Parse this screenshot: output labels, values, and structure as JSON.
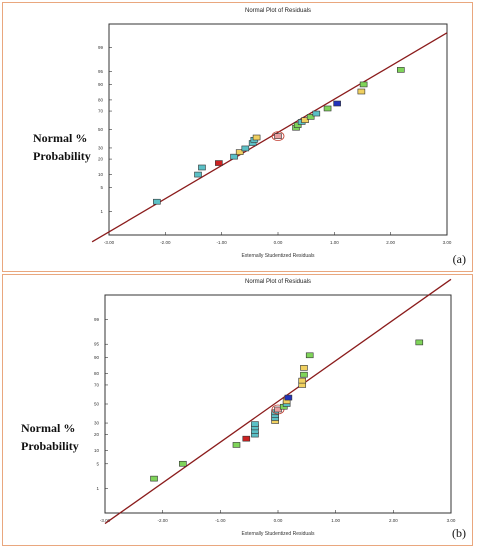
{
  "panels": [
    {
      "panel_label": "(a)",
      "title": "Normal Plot of Residuals",
      "xlabel": "Externally Studentized Residuals",
      "ylabel_line1": "Normal %",
      "ylabel_line2": "Probability"
    },
    {
      "panel_label": "(b)",
      "title": "Normal Plot of Residuals",
      "xlabel": "Externally Studentized Residuals",
      "ylabel_line1": "Normal %",
      "ylabel_line2": "Probability"
    }
  ],
  "colors": {
    "line": "#8b1c1c",
    "frame": "#333333",
    "panel_border": "#e9a77e",
    "highlight_ring": "#c0392b"
  },
  "chart_data": [
    {
      "type": "scatter",
      "title": "Normal Plot of Residuals",
      "xlabel": "Externally Studentized Residuals",
      "ylabel": "Normal % Probability",
      "xlim": [
        -3.0,
        3.0
      ],
      "x_ticks": [
        "-3.00",
        "-2.00",
        "-1.00",
        "0.00",
        "1.00",
        "2.00",
        "3.00"
      ],
      "y_ticks": [
        "1",
        "5",
        "10",
        "20",
        "30",
        "50",
        "70",
        "80",
        "90",
        "95",
        "99"
      ],
      "fit_line": {
        "x": [
          -3.3,
          3.0
        ],
        "y": [
          0.07,
          99.7
        ]
      },
      "points": [
        {
          "x": -2.15,
          "y": 2.0,
          "color": "#5bc0c6"
        },
        {
          "x": -1.42,
          "y": 10.0,
          "color": "#5bc0c6"
        },
        {
          "x": -1.35,
          "y": 14.0,
          "color": "#5bc0c6"
        },
        {
          "x": -1.05,
          "y": 17.0,
          "color": "#cc2222"
        },
        {
          "x": -0.78,
          "y": 22.0,
          "color": "#5bc0c6"
        },
        {
          "x": -0.68,
          "y": 26.0,
          "color": "#f0d060"
        },
        {
          "x": -0.58,
          "y": 29.5,
          "color": "#5bc0c6"
        },
        {
          "x": -0.45,
          "y": 35.0,
          "color": "#5bc0c6"
        },
        {
          "x": -0.42,
          "y": 38.5,
          "color": "#5bc0c6"
        },
        {
          "x": -0.38,
          "y": 41.0,
          "color": "#f0d060"
        },
        {
          "x": 0.0,
          "y": 42.5,
          "color": "#e8a0a0"
        },
        {
          "x": 0.32,
          "y": 52.0,
          "color": "#7fd45a"
        },
        {
          "x": 0.35,
          "y": 55.0,
          "color": "#7fd45a"
        },
        {
          "x": 0.42,
          "y": 58.5,
          "color": "#5bc0c6"
        },
        {
          "x": 0.48,
          "y": 60.5,
          "color": "#f0d060"
        },
        {
          "x": 0.58,
          "y": 64.0,
          "color": "#7fd45a"
        },
        {
          "x": 0.68,
          "y": 67.5,
          "color": "#5bc0c6"
        },
        {
          "x": 0.88,
          "y": 72.5,
          "color": "#7fd45a"
        },
        {
          "x": 1.05,
          "y": 77.0,
          "color": "#2233bb"
        },
        {
          "x": 1.48,
          "y": 86.0,
          "color": "#f0d060"
        },
        {
          "x": 1.52,
          "y": 90.0,
          "color": "#7fd45a"
        },
        {
          "x": 2.18,
          "y": 95.5,
          "color": "#7fd45a"
        }
      ]
    },
    {
      "type": "scatter",
      "title": "Normal Plot of Residuals",
      "xlabel": "Externally Studentized Residuals",
      "ylabel": "Normal % Probability",
      "xlim": [
        -3.0,
        3.0
      ],
      "x_ticks": [
        "-3.00",
        "-2.00",
        "-1.00",
        "0.00",
        "1.00",
        "2.00",
        "3.00"
      ],
      "y_ticks": [
        "1",
        "5",
        "10",
        "20",
        "30",
        "50",
        "70",
        "80",
        "90",
        "95",
        "99"
      ],
      "fit_line": {
        "x": [
          -3.0,
          3.0
        ],
        "y": [
          0.05,
          99.97
        ]
      },
      "points": [
        {
          "x": -2.15,
          "y": 2.0,
          "color": "#7fd45a"
        },
        {
          "x": -1.65,
          "y": 5.0,
          "color": "#7fd45a"
        },
        {
          "x": -0.72,
          "y": 13.0,
          "color": "#7fd45a"
        },
        {
          "x": -0.55,
          "y": 17.0,
          "color": "#cc2222"
        },
        {
          "x": -0.4,
          "y": 20.0,
          "color": "#5bc0c6"
        },
        {
          "x": -0.4,
          "y": 23.0,
          "color": "#5bc0c6"
        },
        {
          "x": -0.4,
          "y": 26.0,
          "color": "#5bc0c6"
        },
        {
          "x": -0.4,
          "y": 29.0,
          "color": "#5bc0c6"
        },
        {
          "x": -0.05,
          "y": 32.0,
          "color": "#f0d060"
        },
        {
          "x": -0.05,
          "y": 35.0,
          "color": "#5bc0c6"
        },
        {
          "x": -0.05,
          "y": 38.0,
          "color": "#5bc0c6"
        },
        {
          "x": -0.05,
          "y": 41.0,
          "color": "#5bc0c6"
        },
        {
          "x": 0.0,
          "y": 44.0,
          "color": "#e8a0a0"
        },
        {
          "x": 0.1,
          "y": 47.0,
          "color": "#7fd45a"
        },
        {
          "x": 0.15,
          "y": 50.0,
          "color": "#5bc0c6"
        },
        {
          "x": 0.15,
          "y": 53.0,
          "color": "#f0d060"
        },
        {
          "x": 0.18,
          "y": 57.0,
          "color": "#2233bb"
        },
        {
          "x": 0.42,
          "y": 70.0,
          "color": "#f0d060"
        },
        {
          "x": 0.42,
          "y": 74.0,
          "color": "#f0d060"
        },
        {
          "x": 0.45,
          "y": 79.0,
          "color": "#7fd45a"
        },
        {
          "x": 0.45,
          "y": 84.0,
          "color": "#f0d060"
        },
        {
          "x": 0.55,
          "y": 91.0,
          "color": "#7fd45a"
        },
        {
          "x": 2.45,
          "y": 95.5,
          "color": "#7fd45a"
        }
      ]
    }
  ]
}
